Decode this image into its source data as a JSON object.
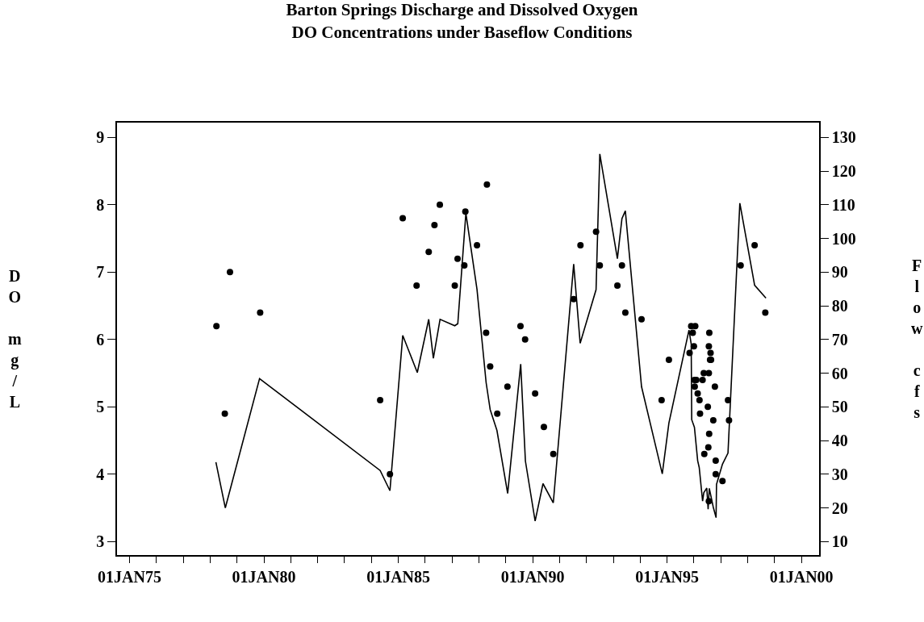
{
  "chart_data": {
    "type": "scatter",
    "title": "Barton Springs Discharge and Dissolved Oxygen\nDO Concentrations under Baseflow Conditions",
    "ylabel": "DO mg/L",
    "y2label": "Flow cfs",
    "xlim": [
      "1974-07-15",
      "2000-08-28"
    ],
    "ylim": [
      2.8,
      9.22
    ],
    "y2lim": [
      6,
      134.4
    ],
    "xticks": [
      {
        "value": "1975-01-01",
        "label": "01JAN75"
      },
      {
        "value": "1976-01-01",
        "label": null
      },
      {
        "value": "1977-01-01",
        "label": null
      },
      {
        "value": "1978-01-01",
        "label": null
      },
      {
        "value": "1979-01-01",
        "label": null
      },
      {
        "value": "1980-01-01",
        "label": "01JAN80"
      },
      {
        "value": "1981-01-01",
        "label": null
      },
      {
        "value": "1982-01-01",
        "label": null
      },
      {
        "value": "1983-01-01",
        "label": null
      },
      {
        "value": "1984-01-01",
        "label": null
      },
      {
        "value": "1985-01-01",
        "label": "01JAN85"
      },
      {
        "value": "1986-01-01",
        "label": null
      },
      {
        "value": "1987-01-01",
        "label": null
      },
      {
        "value": "1988-01-01",
        "label": null
      },
      {
        "value": "1989-01-01",
        "label": null
      },
      {
        "value": "1990-01-01",
        "label": "01JAN90"
      },
      {
        "value": "1991-01-01",
        "label": null
      },
      {
        "value": "1992-01-01",
        "label": null
      },
      {
        "value": "1993-01-01",
        "label": null
      },
      {
        "value": "1994-01-01",
        "label": null
      },
      {
        "value": "1995-01-01",
        "label": "01JAN95"
      },
      {
        "value": "1996-01-01",
        "label": null
      },
      {
        "value": "1997-01-01",
        "label": null
      },
      {
        "value": "1998-01-01",
        "label": null
      },
      {
        "value": "1999-01-01",
        "label": null
      },
      {
        "value": "2000-01-01",
        "label": "01JAN00"
      }
    ],
    "yticks": [
      3,
      4,
      5,
      6,
      7,
      8,
      9
    ],
    "y2ticks": [
      10,
      20,
      30,
      40,
      50,
      60,
      70,
      80,
      90,
      100,
      110,
      120,
      130
    ],
    "series": [
      {
        "color": "#000000",
        "marker": "circle",
        "x": [
          "1978-03-27",
          "1978-07-19",
          "1978-09-27",
          "1979-11-11",
          "1984-04-29",
          "1984-09-09",
          "1985-03-02",
          "1985-09-06",
          "1986-02-18",
          "1986-05-07",
          "1986-07-19",
          "1987-02-07",
          "1987-03-17",
          "1987-06-17",
          "1987-07-01",
          "1987-12-06",
          "1988-04-08",
          "1988-04-19",
          "1988-06-02",
          "1988-09-06",
          "1989-01-23",
          "1989-07-19",
          "1989-09-20",
          "1990-02-03",
          "1990-06-02",
          "1990-10-08",
          "1991-07-12",
          "1991-10-12",
          "1992-05-11",
          "1992-07-01",
          "1993-02-25",
          "1993-04-28",
          "1993-06-13",
          "1994-01-19",
          "1994-10-19",
          "1995-01-26",
          "1995-11-03",
          "1995-11-25",
          "1995-12-16",
          "1996-01-01",
          "1996-01-08",
          "1996-01-12",
          "1996-01-19",
          "1996-02-03",
          "1996-02-21",
          "1996-03-17",
          "1996-03-24",
          "1996-04-28",
          "1996-05-14",
          "1996-05-21",
          "1996-07-08",
          "1996-07-15",
          "1996-07-22",
          "1996-07-22",
          "1996-07-22",
          "1996-07-26",
          "1996-07-28",
          "1996-08-07",
          "1996-08-14",
          "1996-08-21",
          "1996-09-20",
          "1996-10-12",
          "1996-10-23",
          "1996-10-23",
          "1997-01-23",
          "1997-04-08",
          "1997-04-22",
          "1997-09-27",
          "1998-04-05",
          "1998-08-28"
        ],
        "values": [
          6.2,
          4.9,
          7.0,
          6.4,
          5.1,
          4.0,
          7.8,
          6.8,
          7.3,
          7.7,
          8.0,
          6.8,
          7.2,
          7.1,
          7.9,
          7.4,
          6.1,
          8.3,
          5.6,
          4.9,
          5.3,
          6.2,
          6.0,
          5.2,
          4.7,
          4.3,
          6.6,
          7.4,
          7.6,
          7.1,
          6.8,
          7.1,
          6.4,
          6.3,
          5.1,
          5.7,
          5.8,
          6.2,
          6.1,
          5.9,
          5.4,
          5.3,
          6.2,
          5.4,
          5.2,
          5.1,
          4.9,
          5.4,
          5.5,
          4.3,
          5.0,
          4.4,
          5.9,
          5.5,
          3.6,
          4.6,
          6.1,
          5.7,
          5.8,
          5.7,
          4.8,
          5.3,
          4.2,
          4.0,
          3.9,
          5.1,
          4.8,
          7.1,
          7.4,
          6.4
        ]
      },
      {
        "type": "line",
        "axis": "y2",
        "color": "#000000",
        "marker": "none",
        "x": [
          "1978-03-20",
          "1978-07-26",
          "1979-11-03",
          "1984-04-29",
          "1984-09-09",
          "1985-03-02",
          "1985-09-16",
          "1986-02-18",
          "1986-04-22",
          "1986-07-22",
          "1987-02-07",
          "1987-03-20",
          "1987-07-08",
          "1987-12-06",
          "1988-04-08",
          "1988-06-02",
          "1988-09-02",
          "1989-01-26",
          "1989-07-22",
          "1989-09-24",
          "1990-02-03",
          "1990-05-21",
          "1990-10-08",
          "1991-07-12",
          "1991-10-08",
          "1992-05-11",
          "1992-07-01",
          "1993-02-25",
          "1993-04-28",
          "1993-06-13",
          "1994-01-19",
          "1994-10-28",
          "1995-01-26",
          "1995-10-26",
          "1995-11-25",
          "1995-12-02",
          "1996-01-08",
          "1996-02-21",
          "1996-03-13",
          "1996-04-28",
          "1996-05-14",
          "1996-06-24",
          "1996-07-12",
          "1996-07-28",
          "1996-09-20",
          "1996-10-28",
          "1996-11-03",
          "1997-01-23",
          "1997-04-08",
          "1997-09-16",
          "1998-04-05",
          "1998-09-06"
        ],
        "values": [
          33.6,
          20.0,
          58.4,
          31.1,
          25.1,
          71.2,
          60.2,
          76.0,
          64.4,
          76.0,
          74.1,
          74.7,
          107.5,
          84.9,
          57.2,
          49.2,
          43.0,
          24.3,
          62.7,
          33.9,
          16.1,
          27.2,
          21.5,
          92.4,
          68.9,
          84.8,
          125.1,
          94.0,
          105.9,
          108.2,
          56.0,
          30.1,
          45.2,
          72.8,
          68.7,
          46.2,
          43.9,
          34.0,
          32.0,
          22.0,
          24.5,
          25.9,
          19.6,
          25.8,
          20.2,
          17.1,
          27.0,
          33.0,
          36.3,
          110.5,
          86.1,
          82.3
        ]
      }
    ]
  }
}
